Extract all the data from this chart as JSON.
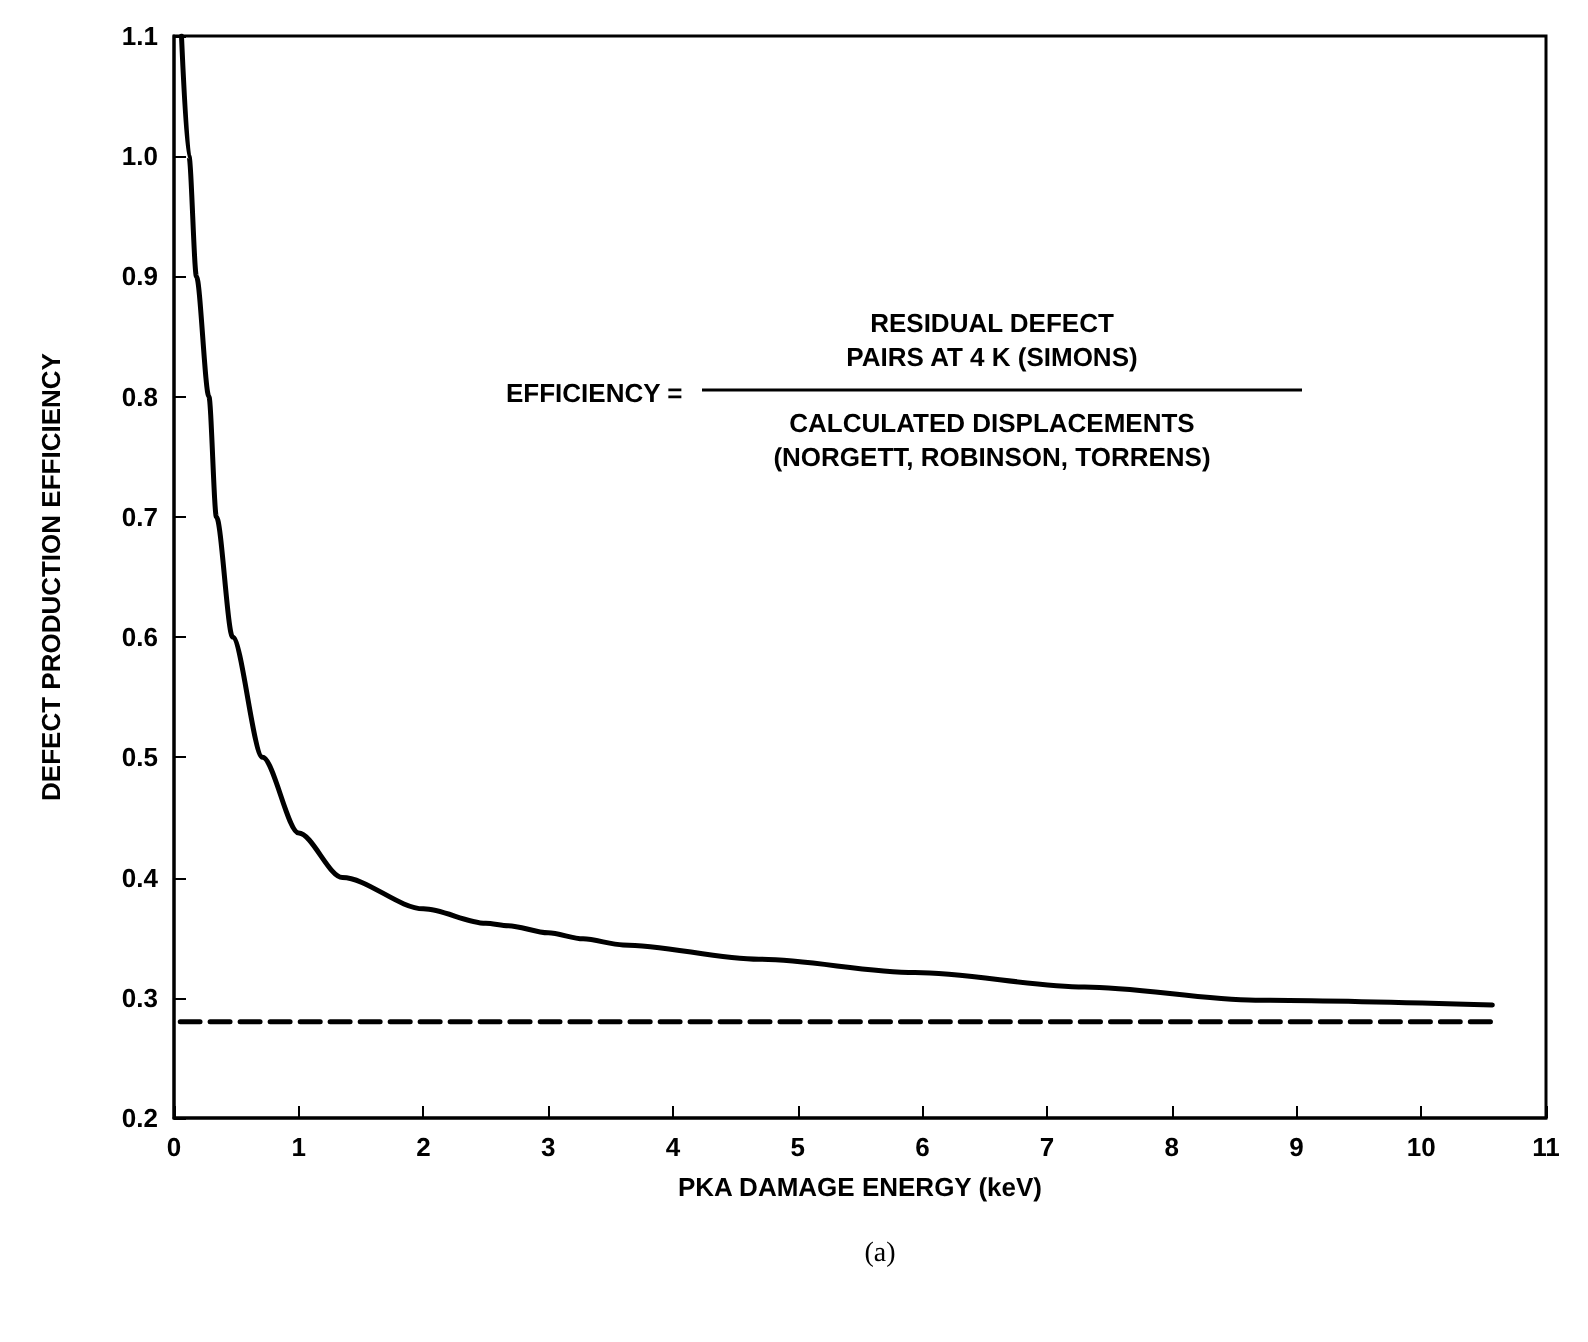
{
  "chart_data": {
    "type": "line",
    "xlabel": "PKA DAMAGE ENERGY (keV)",
    "ylabel": "DEFECT PRODUCTION EFFICIENCY",
    "xlim": [
      0,
      11
    ],
    "ylim": [
      0.2,
      1.1
    ],
    "xticks": [
      0,
      1,
      2,
      3,
      4,
      5,
      6,
      7,
      8,
      9,
      10,
      11
    ],
    "yticks": [
      0.2,
      0.3,
      0.4,
      0.5,
      0.6,
      0.7,
      0.8,
      0.9,
      {
        "value": 1,
        "label": "1.0"
      },
      1.1
    ],
    "grid": false,
    "marker": "none",
    "annotations": [
      "EFFICIENCY =",
      "RESIDUAL DEFECT\nPAIRS AT 4 K (SIMONS)",
      "CALCULATED DISPLACEMENTS\n(NORGETT, ROBINSON, TORRENS)",
      "(a)"
    ],
    "series": [
      {
        "color": "#000000",
        "line_style": "solid",
        "x": [
          0.06,
          0.12,
          0.18,
          0.28,
          0.34,
          0.47,
          0.71,
          1,
          1.35,
          2,
          2.5,
          2.68,
          3,
          3.28,
          3.6,
          4.69,
          5.94,
          7.3,
          8.67,
          10.57
        ],
        "values": [
          1.1,
          1.0,
          0.9,
          0.8,
          0.7,
          0.6,
          0.5,
          0.437,
          0.4,
          0.374,
          0.362,
          0.36,
          0.354,
          0.349,
          0.344,
          0.332,
          0.321,
          0.309,
          0.298,
          0.294
        ]
      },
      {
        "color": "#000000",
        "line_style": "dashed",
        "x": [
          0.05,
          10.57
        ],
        "values": [
          0.28,
          0.28
        ]
      }
    ]
  }
}
